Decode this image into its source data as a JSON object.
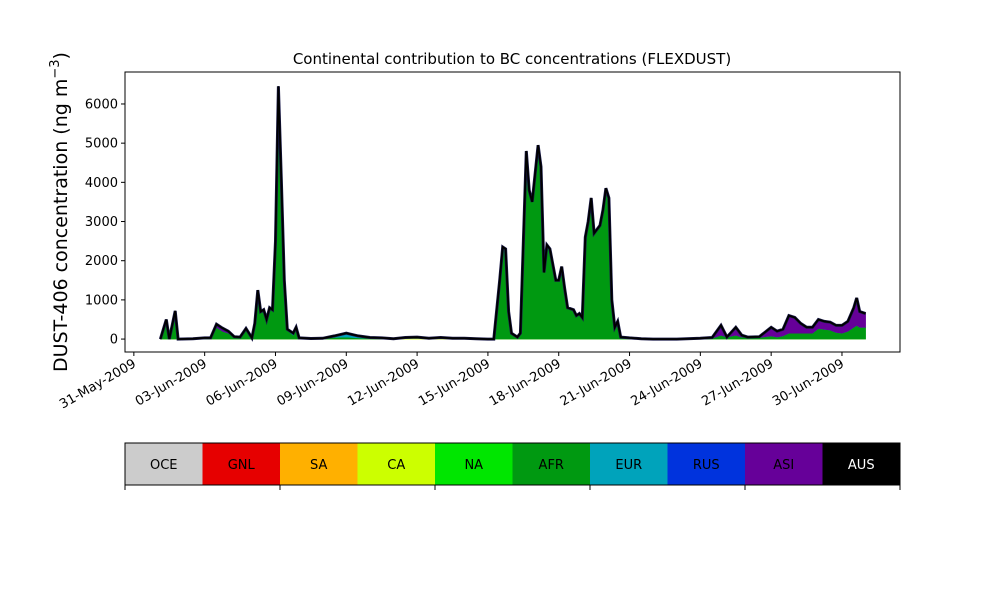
{
  "chart_data": {
    "type": "area",
    "stacked": true,
    "title": "Continental contribution to BC concentrations (FLEXDUST)",
    "ylabel": "DUST-406 concentration (ng m",
    "ylabel_sup": "−3",
    "ylabel_close": ")",
    "xlabel": "",
    "ylim": [
      -330,
      6816
    ],
    "xlim": [
      "2009-05-30T15:00:00Z",
      "2009-07-02T11:00:00Z"
    ],
    "yticks": [
      0,
      1000,
      2000,
      3000,
      4000,
      5000,
      6000
    ],
    "ytick_labels": [
      "0",
      "1000",
      "2000",
      "3000",
      "4000",
      "5000",
      "6000"
    ],
    "xticks": [
      "2009-05-31",
      "2009-06-03",
      "2009-06-06",
      "2009-06-09",
      "2009-06-12",
      "2009-06-15",
      "2009-06-18",
      "2009-06-21",
      "2009-06-24",
      "2009-06-27",
      "2009-06-30"
    ],
    "xtick_labels": [
      "31-May-2009",
      "03-Jun-2009",
      "06-Jun-2009",
      "09-Jun-2009",
      "12-Jun-2009",
      "15-Jun-2009",
      "18-Jun-2009",
      "21-Jun-2009",
      "24-Jun-2009",
      "27-Jun-2009",
      "30-Jun-2009"
    ],
    "grid": false,
    "total_line_color": "#000000",
    "x": [
      "2009-06-01T03:00",
      "2009-06-01T09:00",
      "2009-06-01T12:00",
      "2009-06-01T18:00",
      "2009-06-01T21:00",
      "2009-06-02T12:00",
      "2009-06-03T00:00",
      "2009-06-03T06:00",
      "2009-06-03T12:00",
      "2009-06-03T18:00",
      "2009-06-04T00:00",
      "2009-06-04T06:00",
      "2009-06-04T12:00",
      "2009-06-04T18:00",
      "2009-06-05T00:00",
      "2009-06-05T03:00",
      "2009-06-05T06:00",
      "2009-06-05T09:00",
      "2009-06-05T12:00",
      "2009-06-05T15:00",
      "2009-06-05T18:00",
      "2009-06-05T21:00",
      "2009-06-06T00:00",
      "2009-06-06T03:00",
      "2009-06-06T06:00",
      "2009-06-06T09:00",
      "2009-06-06T12:00",
      "2009-06-06T18:00",
      "2009-06-06T21:00",
      "2009-06-07T00:00",
      "2009-06-07T12:00",
      "2009-06-08T00:00",
      "2009-06-08T12:00",
      "2009-06-09T00:00",
      "2009-06-09T12:00",
      "2009-06-10T00:00",
      "2009-06-10T12:00",
      "2009-06-11T00:00",
      "2009-06-11T12:00",
      "2009-06-12T00:00",
      "2009-06-12T12:00",
      "2009-06-13T00:00",
      "2009-06-13T12:00",
      "2009-06-14T00:00",
      "2009-06-14T12:00",
      "2009-06-15T00:00",
      "2009-06-15T06:00",
      "2009-06-15T12:00",
      "2009-06-15T15:00",
      "2009-06-15T18:00",
      "2009-06-15T21:00",
      "2009-06-16T00:00",
      "2009-06-16T06:00",
      "2009-06-16T09:00",
      "2009-06-16T15:00",
      "2009-06-16T18:00",
      "2009-06-16T21:00",
      "2009-06-17T03:00",
      "2009-06-17T06:00",
      "2009-06-17T09:00",
      "2009-06-17T12:00",
      "2009-06-17T15:00",
      "2009-06-17T21:00",
      "2009-06-18T00:00",
      "2009-06-18T03:00",
      "2009-06-18T06:00",
      "2009-06-18T09:00",
      "2009-06-18T15:00",
      "2009-06-18T18:00",
      "2009-06-18T21:00",
      "2009-06-19T00:00",
      "2009-06-19T03:00",
      "2009-06-19T06:00",
      "2009-06-19T09:00",
      "2009-06-19T12:00",
      "2009-06-19T18:00",
      "2009-06-19T21:00",
      "2009-06-20T00:00",
      "2009-06-20T03:00",
      "2009-06-20T06:00",
      "2009-06-20T09:00",
      "2009-06-20T12:00",
      "2009-06-20T15:00",
      "2009-06-21T00:00",
      "2009-06-21T12:00",
      "2009-06-22T00:00",
      "2009-06-23T00:00",
      "2009-06-24T00:00",
      "2009-06-24T12:00",
      "2009-06-24T21:00",
      "2009-06-25T03:00",
      "2009-06-25T12:00",
      "2009-06-25T18:00",
      "2009-06-26T00:00",
      "2009-06-26T12:00",
      "2009-06-27T00:00",
      "2009-06-27T06:00",
      "2009-06-27T12:00",
      "2009-06-27T18:00",
      "2009-06-28T00:00",
      "2009-06-28T06:00",
      "2009-06-28T12:00",
      "2009-06-28T18:00",
      "2009-06-29T00:00",
      "2009-06-29T06:00",
      "2009-06-29T12:00",
      "2009-06-29T18:00",
      "2009-06-30T00:00",
      "2009-06-30T06:00",
      "2009-06-30T12:00",
      "2009-06-30T15:00",
      "2009-06-30T18:00",
      "2009-07-01T00:00"
    ],
    "series": [
      {
        "name": "CA",
        "color": "#ccff00",
        "values": [
          0,
          0,
          0,
          0,
          0,
          0,
          0,
          0,
          0,
          0,
          0,
          0,
          0,
          0,
          0,
          0,
          0,
          0,
          0,
          0,
          0,
          0,
          0,
          0,
          0,
          0,
          0,
          0,
          0,
          0,
          0,
          0,
          0,
          0,
          0,
          0,
          0,
          0,
          20,
          20,
          15,
          20,
          15,
          15,
          10,
          0,
          0,
          0,
          0,
          0,
          0,
          0,
          0,
          0,
          0,
          0,
          0,
          0,
          0,
          0,
          0,
          0,
          0,
          0,
          0,
          0,
          0,
          0,
          0,
          0,
          0,
          0,
          0,
          0,
          0,
          0,
          0,
          0,
          0,
          0,
          0,
          0,
          0,
          0,
          0,
          0,
          0,
          0,
          0,
          0,
          0,
          0,
          0,
          0,
          0,
          0,
          0,
          0,
          0,
          0,
          0,
          0,
          0,
          0,
          0,
          0,
          0,
          0,
          0,
          0,
          0,
          0,
          0
        ]
      },
      {
        "name": "AFR",
        "color": "#009911",
        "values": [
          0,
          500,
          0,
          720,
          0,
          10,
          30,
          30,
          300,
          200,
          150,
          60,
          50,
          270,
          30,
          400,
          1250,
          700,
          750,
          500,
          800,
          750,
          2500,
          6450,
          4000,
          1500,
          220,
          100,
          240,
          30,
          15,
          20,
          40,
          50,
          30,
          20,
          30,
          10,
          20,
          30,
          5,
          20,
          5,
          5,
          0,
          0,
          0,
          1500,
          2350,
          2300,
          700,
          150,
          50,
          150,
          4800,
          3800,
          3500,
          4950,
          4400,
          1700,
          2400,
          2300,
          1500,
          1500,
          1850,
          1300,
          800,
          750,
          600,
          650,
          550,
          2600,
          3000,
          3600,
          2700,
          2900,
          3300,
          3850,
          3600,
          1000,
          300,
          450,
          50,
          30,
          10,
          0,
          0,
          20,
          20,
          100,
          50,
          100,
          50,
          50,
          40,
          80,
          50,
          80,
          150,
          150,
          150,
          150,
          150,
          270,
          250,
          230,
          170,
          150,
          200,
          300,
          350,
          300,
          300
        ]
      },
      {
        "name": "EUR",
        "color": "#00a3bb",
        "values": [
          0,
          0,
          0,
          0,
          0,
          0,
          0,
          0,
          0,
          0,
          0,
          0,
          0,
          0,
          0,
          0,
          0,
          0,
          0,
          0,
          0,
          0,
          0,
          0,
          0,
          0,
          30,
          50,
          60,
          0,
          0,
          0,
          40,
          100,
          50,
          20,
          0,
          0,
          0,
          0,
          0,
          0,
          0,
          0,
          0,
          0,
          0,
          0,
          0,
          0,
          0,
          0,
          0,
          0,
          0,
          0,
          0,
          0,
          0,
          0,
          0,
          0,
          0,
          0,
          0,
          0,
          0,
          0,
          0,
          0,
          0,
          0,
          0,
          0,
          0,
          0,
          0,
          0,
          0,
          0,
          0,
          0,
          0,
          0,
          0,
          0,
          0,
          0,
          0,
          0,
          0,
          0,
          0,
          0,
          0,
          0,
          0,
          0,
          0,
          0,
          0,
          0,
          0,
          0,
          0,
          0,
          0,
          0,
          0,
          0,
          0,
          0,
          0
        ]
      },
      {
        "name": "ASI",
        "color": "#660099",
        "values": [
          0,
          0,
          0,
          0,
          0,
          0,
          0,
          0,
          80,
          80,
          50,
          0,
          0,
          0,
          0,
          0,
          0,
          0,
          0,
          0,
          0,
          0,
          0,
          0,
          0,
          0,
          0,
          0,
          0,
          0,
          0,
          0,
          0,
          0,
          0,
          0,
          0,
          0,
          0,
          0,
          0,
          0,
          0,
          0,
          0,
          0,
          0,
          0,
          0,
          0,
          0,
          0,
          0,
          0,
          0,
          0,
          0,
          0,
          0,
          0,
          0,
          0,
          0,
          0,
          0,
          0,
          0,
          0,
          0,
          0,
          0,
          0,
          0,
          0,
          0,
          0,
          0,
          0,
          0,
          0,
          0,
          0,
          0,
          0,
          0,
          0,
          0,
          0,
          20,
          250,
          0,
          200,
          50,
          0,
          20,
          220,
          150,
          170,
          450,
          400,
          250,
          150,
          150,
          230,
          200,
          200,
          180,
          200,
          250,
          500,
          700,
          400,
          350
        ]
      }
    ],
    "legend": {
      "placement": "bottom colorbar",
      "entries": [
        {
          "label": "OCE",
          "color": "#cccccc",
          "text_color": "#000000"
        },
        {
          "label": "GNL",
          "color": "#e60000",
          "text_color": "#000000"
        },
        {
          "label": "SA",
          "color": "#ffb000",
          "text_color": "#000000"
        },
        {
          "label": "CA",
          "color": "#ccff00",
          "text_color": "#000000"
        },
        {
          "label": "NA",
          "color": "#00e600",
          "text_color": "#000000"
        },
        {
          "label": "AFR",
          "color": "#009911",
          "text_color": "#000000"
        },
        {
          "label": "EUR",
          "color": "#00a3bb",
          "text_color": "#000000"
        },
        {
          "label": "RUS",
          "color": "#0033dd",
          "text_color": "#000000"
        },
        {
          "label": "ASI",
          "color": "#660099",
          "text_color": "#000000"
        },
        {
          "label": "AUS",
          "color": "#000000",
          "text_color": "#ffffff"
        }
      ]
    }
  }
}
